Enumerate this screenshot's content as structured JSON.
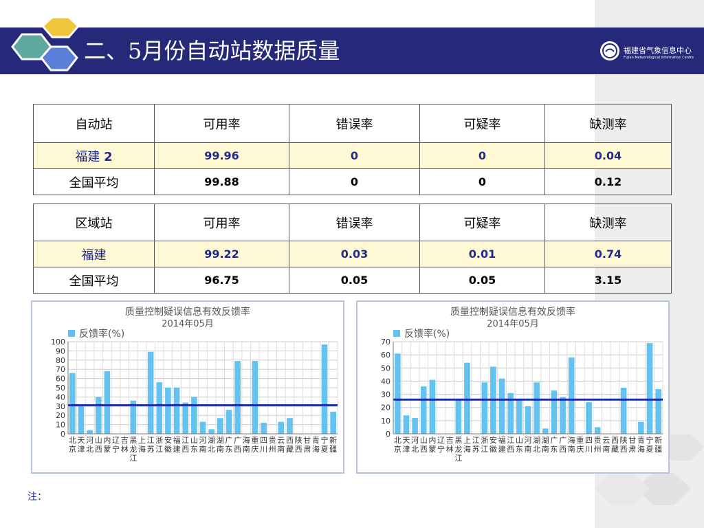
{
  "slide": {
    "title": "二、5月份自动站数据质量",
    "org_name_cn": "福建省气象信息中心",
    "org_name_en": "Fujian Meteorological Information Centre",
    "note": "注："
  },
  "colors": {
    "header_bar": "#26287a",
    "highlight_row": "#fff8d4",
    "bar": "#63c2ef",
    "avg_line": "#1c2bb0"
  },
  "table1": {
    "headers": [
      "自动站",
      "可用率",
      "错误率",
      "可疑率",
      "缺测率"
    ],
    "row1": {
      "name": "福建",
      "name_suffix": "2",
      "values": [
        "99.96",
        "0",
        "0",
        "0.04"
      ]
    },
    "row2": {
      "name": "全国平均",
      "values": [
        "99.88",
        "0",
        "0",
        "0.12"
      ]
    }
  },
  "table2": {
    "headers": [
      "区域站",
      "可用率",
      "错误率",
      "可疑率",
      "缺测率"
    ],
    "row1": {
      "name": "福建",
      "values": [
        "99.22",
        "0.03",
        "0.01",
        "0.74"
      ]
    },
    "row2": {
      "name": "全国平均",
      "values": [
        "96.75",
        "0.05",
        "0.05",
        "3.15"
      ]
    }
  },
  "chart_data": [
    {
      "type": "bar",
      "title": "质量控制疑误信息有效反馈率",
      "subtitle": "2014年05月",
      "legend": "反馈率(%)",
      "legend_position": "top-left",
      "grid": true,
      "ylim": [
        0,
        100
      ],
      "yticks": [
        0,
        10,
        20,
        30,
        40,
        50,
        60,
        70,
        80,
        90,
        100
      ],
      "categories": [
        "北京",
        "天津",
        "河北",
        "山西",
        "内蒙",
        "辽宁",
        "吉林",
        "黑龙江",
        "上海",
        "江苏",
        "浙江",
        "安徽",
        "福建",
        "江西",
        "山东",
        "河南",
        "湖北",
        "湖南",
        "广东",
        "广西",
        "海南",
        "重庆",
        "四川",
        "贵州",
        "云南",
        "西藏",
        "陕西",
        "甘肃",
        "青海",
        "宁夏",
        "新疆"
      ],
      "values": [
        66,
        32,
        4,
        40,
        68,
        0,
        0,
        36,
        0,
        89,
        56,
        50,
        50,
        34,
        40,
        13,
        5,
        17,
        26,
        79,
        0,
        79,
        12,
        0,
        13,
        17,
        0,
        0,
        0,
        97,
        24
      ],
      "avg_line": 31
    },
    {
      "type": "bar",
      "title": "质量控制疑误信息有效反馈率",
      "subtitle": "2014年05月",
      "legend": "反馈率(%)",
      "legend_position": "top-left",
      "grid": true,
      "ylim": [
        0,
        70
      ],
      "yticks": [
        0,
        10,
        20,
        30,
        40,
        50,
        60,
        70
      ],
      "categories": [
        "北京",
        "天津",
        "河北",
        "山西",
        "内蒙",
        "辽宁",
        "吉林",
        "黑龙江",
        "上海",
        "江苏",
        "浙江",
        "安徽",
        "福建",
        "江西",
        "山东",
        "河南",
        "湖北",
        "湖南",
        "广东",
        "广西",
        "海南",
        "重庆",
        "四川",
        "贵州",
        "云南",
        "西藏",
        "陕西",
        "甘肃",
        "青海",
        "宁夏",
        "新疆"
      ],
      "values": [
        61,
        14,
        12,
        36,
        41,
        0,
        0,
        26,
        54,
        0,
        39,
        51,
        42,
        31,
        26,
        21,
        39,
        4,
        33,
        28,
        58,
        0,
        24,
        5,
        0,
        0,
        35,
        0,
        9,
        69,
        34
      ],
      "avg_line": 26
    }
  ]
}
